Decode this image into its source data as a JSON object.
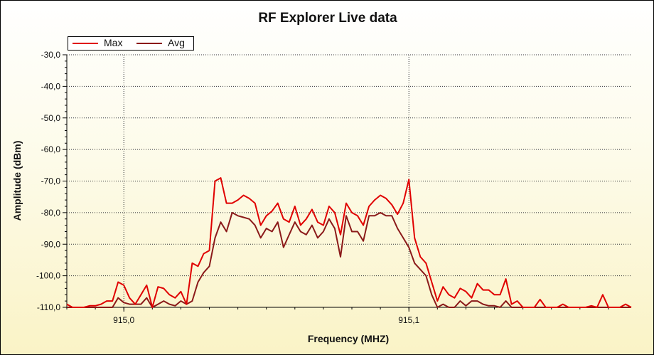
{
  "chart_data": {
    "type": "line",
    "title": "RF Explorer Live data",
    "xlabel": "Frequency (MHZ)",
    "ylabel": "Amplitude (dBm)",
    "x_ticks": [
      "915,0",
      "915,1"
    ],
    "y_ticks": [
      "-30,0",
      "-40,0",
      "-50,0",
      "-60,0",
      "-70,0",
      "-80,0",
      "-90,0",
      "-100,0",
      "-110,0"
    ],
    "ylim": [
      -110,
      -30
    ],
    "xlim": [
      914.98,
      915.178
    ],
    "grid": true,
    "legend_position": "top-left",
    "colors": {
      "Max": "#e00000",
      "Avg": "#8b1a1a"
    },
    "series": [
      {
        "name": "Max",
        "x": [
          914.98,
          914.982,
          914.984,
          914.986,
          914.988,
          914.99,
          914.992,
          914.994,
          914.996,
          914.998,
          915.0,
          915.002,
          915.004,
          915.006,
          915.008,
          915.01,
          915.012,
          915.014,
          915.016,
          915.018,
          915.02,
          915.022,
          915.024,
          915.026,
          915.028,
          915.03,
          915.032,
          915.034,
          915.036,
          915.038,
          915.04,
          915.042,
          915.044,
          915.046,
          915.048,
          915.05,
          915.052,
          915.054,
          915.056,
          915.058,
          915.06,
          915.062,
          915.064,
          915.066,
          915.068,
          915.07,
          915.072,
          915.074,
          915.076,
          915.078,
          915.08,
          915.082,
          915.084,
          915.086,
          915.088,
          915.09,
          915.092,
          915.094,
          915.096,
          915.098,
          915.1,
          915.102,
          915.104,
          915.106,
          915.108,
          915.11,
          915.112,
          915.114,
          915.116,
          915.118,
          915.12,
          915.122,
          915.124,
          915.126,
          915.128,
          915.13,
          915.132,
          915.134,
          915.136,
          915.138,
          915.14,
          915.142,
          915.144,
          915.146,
          915.148,
          915.15,
          915.152,
          915.154,
          915.156,
          915.158,
          915.16,
          915.162,
          915.164,
          915.166,
          915.168,
          915.17,
          915.172,
          915.174,
          915.176,
          915.178
        ],
        "values": [
          -109,
          -110,
          -110,
          -110,
          -109.5,
          -109.5,
          -109,
          -108,
          -108,
          -102,
          -103,
          -107,
          -109,
          -106,
          -103,
          -110,
          -103.5,
          -104,
          -106,
          -107,
          -105,
          -109,
          -96,
          -97,
          -93,
          -92,
          -70,
          -69,
          -77,
          -77,
          -76,
          -74.5,
          -75.5,
          -77,
          -84,
          -81,
          -79.5,
          -77,
          -82,
          -83,
          -78,
          -84,
          -82,
          -79,
          -83,
          -84,
          -78,
          -80,
          -87,
          -77,
          -80,
          -81,
          -84,
          -78,
          -76,
          -74.5,
          -75.5,
          -77.5,
          -80.5,
          -77,
          -69.5,
          -88,
          -94,
          -96,
          -102,
          -108,
          -103.5,
          -106,
          -107,
          -104,
          -105,
          -107,
          -102.5,
          -104.5,
          -104.5,
          -106,
          -106,
          -101,
          -109,
          -108,
          -110,
          -110,
          -110,
          -107.5,
          -110,
          -110,
          -110,
          -109,
          -110,
          -110,
          -110,
          -110,
          -109.5,
          -110,
          -106,
          -110,
          -110,
          -110,
          -109,
          -110
        ]
      },
      {
        "name": "Avg",
        "x": [
          914.98,
          914.982,
          914.984,
          914.986,
          914.988,
          914.99,
          914.992,
          914.994,
          914.996,
          914.998,
          915.0,
          915.002,
          915.004,
          915.006,
          915.008,
          915.01,
          915.012,
          915.014,
          915.016,
          915.018,
          915.02,
          915.022,
          915.024,
          915.026,
          915.028,
          915.03,
          915.032,
          915.034,
          915.036,
          915.038,
          915.04,
          915.042,
          915.044,
          915.046,
          915.048,
          915.05,
          915.052,
          915.054,
          915.056,
          915.058,
          915.06,
          915.062,
          915.064,
          915.066,
          915.068,
          915.07,
          915.072,
          915.074,
          915.076,
          915.078,
          915.08,
          915.082,
          915.084,
          915.086,
          915.088,
          915.09,
          915.092,
          915.094,
          915.096,
          915.098,
          915.1,
          915.102,
          915.104,
          915.106,
          915.108,
          915.11,
          915.112,
          915.114,
          915.116,
          915.118,
          915.12,
          915.122,
          915.124,
          915.126,
          915.128,
          915.13,
          915.132,
          915.134,
          915.136,
          915.138,
          915.14,
          915.142,
          915.144,
          915.146,
          915.148,
          915.15,
          915.152,
          915.154,
          915.156,
          915.158,
          915.16,
          915.162,
          915.164,
          915.166,
          915.168,
          915.17,
          915.172,
          915.174,
          915.176,
          915.178
        ],
        "values": [
          -110,
          -110,
          -110,
          -110,
          -110,
          -110,
          -110,
          -110,
          -110,
          -107,
          -108.5,
          -109,
          -109,
          -109,
          -107,
          -110,
          -109,
          -108,
          -109,
          -109.5,
          -108,
          -109,
          -108,
          -102,
          -99,
          -97,
          -88,
          -83,
          -86,
          -80,
          -81,
          -81.5,
          -82,
          -84,
          -88,
          -85,
          -86,
          -83,
          -91,
          -87,
          -83,
          -86,
          -87,
          -84,
          -88,
          -86,
          -82,
          -85,
          -94,
          -81,
          -86,
          -86,
          -89,
          -81,
          -81,
          -80,
          -81,
          -81,
          -85,
          -88,
          -91,
          -96,
          -98,
          -100,
          -106,
          -110,
          -109,
          -110,
          -110,
          -108,
          -109.5,
          -108,
          -108,
          -109,
          -109.5,
          -109.5,
          -110,
          -108,
          -110,
          -110,
          -110,
          -110,
          -110,
          -110,
          -110,
          -110,
          -110,
          -110,
          -110,
          -110,
          -110,
          -110,
          -110,
          -110,
          -110,
          -110,
          -110,
          -110,
          -110,
          -110
        ]
      }
    ]
  }
}
